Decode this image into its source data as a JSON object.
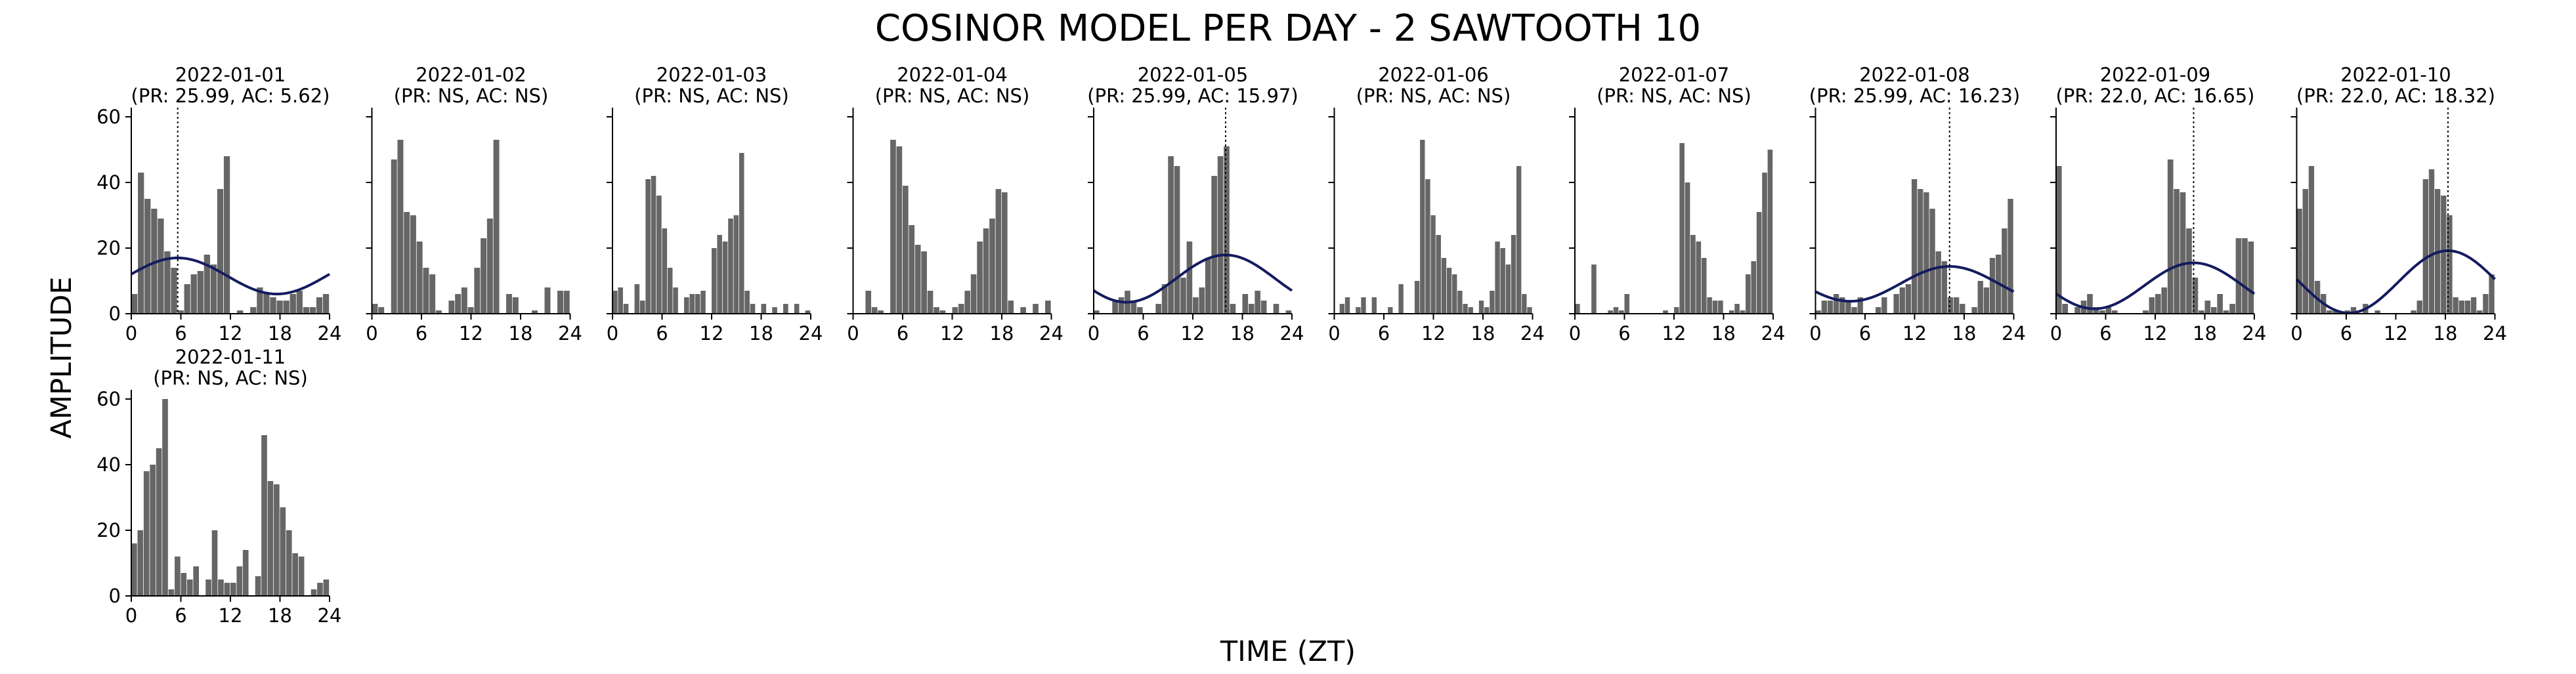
{
  "figure": {
    "title": "COSINOR MODEL PER DAY - 2 SAWTOOTH 10",
    "xlabel": "TIME (ZT)",
    "ylabel": "AMPLITUDE"
  },
  "chart_data": {
    "type": "bar",
    "note_series": "Each panel: hourly activity histogram (gray bars) with optional fitted cosinor curve (navy) and acrophase marker (dotted vertical line).",
    "xlim": [
      0,
      24
    ],
    "ylim": [
      0,
      62
    ],
    "xticks": [
      0,
      6,
      12,
      18,
      24
    ],
    "yticks": [
      0,
      20,
      40,
      60
    ],
    "bar_color": "#666666",
    "curve_color": "#141b5e",
    "panels": [
      {
        "title": "2022-01-01",
        "subtitle": "(PR: 25.99, AC: 5.62)",
        "acrophase": 5.62,
        "fit": {
          "mesor": 11.5,
          "amplitude": 5.5
        },
        "bars": [
          6,
          43,
          35,
          32,
          29,
          19,
          14,
          1,
          9,
          12,
          13,
          18,
          15,
          38,
          48,
          0,
          1,
          0,
          2,
          8,
          6,
          5,
          4,
          4,
          6,
          7,
          2,
          2,
          5,
          6
        ]
      },
      {
        "title": "2022-01-02",
        "subtitle": "(PR: NS, AC: NS)",
        "acrophase": null,
        "fit": null,
        "bars": [
          3,
          2,
          0,
          47,
          53,
          31,
          30,
          22,
          14,
          12,
          1,
          0,
          4,
          6,
          8,
          2,
          14,
          23,
          29,
          53,
          0,
          6,
          5,
          0,
          0,
          1,
          0,
          8,
          0,
          7,
          7
        ]
      },
      {
        "title": "2022-01-03",
        "subtitle": "(PR: NS, AC: NS)",
        "acrophase": null,
        "fit": null,
        "bars": [
          7,
          8,
          3,
          0,
          9,
          4,
          41,
          42,
          36,
          26,
          14,
          8,
          0,
          5,
          6,
          6,
          7,
          0,
          20,
          24,
          22,
          29,
          30,
          49,
          7,
          3,
          0,
          3,
          0,
          2,
          0,
          3,
          0,
          3,
          0,
          1
        ]
      },
      {
        "title": "2022-01-04",
        "subtitle": "(PR: NS, AC: NS)",
        "acrophase": null,
        "fit": null,
        "bars": [
          0,
          0,
          7,
          2,
          1,
          0,
          53,
          51,
          39,
          27,
          21,
          19,
          7,
          2,
          1,
          0,
          2,
          3,
          7,
          12,
          22,
          26,
          29,
          38,
          37,
          4,
          0,
          2,
          0,
          3,
          0,
          4
        ]
      },
      {
        "title": "2022-01-05",
        "subtitle": "(PR: 25.99, AC: 15.97)",
        "acrophase": 15.97,
        "fit": {
          "mesor": 10.7,
          "amplitude": 7.2
        },
        "bars": [
          1,
          0,
          0,
          4,
          5,
          7,
          4,
          2,
          0,
          0,
          3,
          9,
          48,
          45,
          11,
          22,
          5,
          8,
          17,
          42,
          48,
          51,
          3,
          0,
          6,
          3,
          7,
          4,
          0,
          3,
          0,
          1
        ]
      },
      {
        "title": "2022-01-06",
        "subtitle": "(PR: NS, AC: NS)",
        "acrophase": null,
        "fit": null,
        "bars": [
          0,
          3,
          5,
          0,
          2,
          5,
          0,
          5,
          0,
          0,
          2,
          0,
          9,
          0,
          0,
          10,
          53,
          41,
          30,
          24,
          17,
          14,
          12,
          7,
          3,
          2,
          0,
          4,
          2,
          7,
          22,
          20,
          15,
          24,
          45,
          6,
          2
        ]
      },
      {
        "title": "2022-01-07",
        "subtitle": "(PR: NS, AC: NS)",
        "acrophase": null,
        "fit": null,
        "bars": [
          3,
          0,
          0,
          15,
          0,
          0,
          1,
          2,
          1,
          6,
          0,
          0,
          0,
          0,
          0,
          0,
          1,
          0,
          2,
          52,
          40,
          24,
          22,
          17,
          5,
          4,
          4,
          0,
          1,
          3,
          1,
          12,
          16,
          31,
          43,
          50
        ]
      },
      {
        "title": "2022-01-08",
        "subtitle": "(PR: 25.99, AC: 16.23)",
        "acrophase": 16.23,
        "fit": {
          "mesor": 9.1,
          "amplitude": 5.3
        },
        "bars": [
          1,
          4,
          4,
          6,
          5,
          4,
          2,
          5,
          0,
          0,
          2,
          5,
          0,
          6,
          8,
          9,
          41,
          38,
          37,
          32,
          19,
          16,
          5,
          5,
          3,
          0,
          2,
          10,
          8,
          17,
          18,
          26,
          35
        ]
      },
      {
        "title": "2022-01-09",
        "subtitle": "(PR: 22.0, AC: 16.65)",
        "acrophase": 16.65,
        "fit": {
          "mesor": 8.5,
          "amplitude": 7.0
        },
        "bars": [
          45,
          3,
          0,
          2,
          4,
          6,
          2,
          1,
          2,
          1,
          0,
          0,
          0,
          0,
          1,
          5,
          6,
          8,
          47,
          38,
          37,
          26,
          11,
          1,
          4,
          2,
          6,
          1,
          3,
          23,
          23,
          22
        ]
      },
      {
        "title": "2022-01-10",
        "subtitle": "(PR: 22.0, AC: 18.32)",
        "acrophase": 18.32,
        "fit": {
          "mesor": 9.7,
          "amplitude": 9.5
        },
        "bars": [
          32,
          38,
          45,
          10,
          6,
          1,
          1,
          0,
          1,
          2,
          0,
          3,
          0,
          1,
          0,
          0,
          0,
          0,
          0,
          1,
          4,
          41,
          44,
          38,
          36,
          30,
          5,
          4,
          4,
          5,
          1,
          6,
          12
        ]
      },
      {
        "title": "2022-01-11",
        "subtitle": "(PR: NS, AC: NS)",
        "acrophase": null,
        "fit": null,
        "bars": [
          16,
          20,
          38,
          40,
          45,
          60,
          2,
          12,
          7,
          5,
          9,
          0,
          5,
          20,
          5,
          4,
          4,
          9,
          14,
          0,
          6,
          49,
          35,
          34,
          27,
          20,
          13,
          12,
          0,
          2,
          4,
          5
        ]
      }
    ]
  }
}
